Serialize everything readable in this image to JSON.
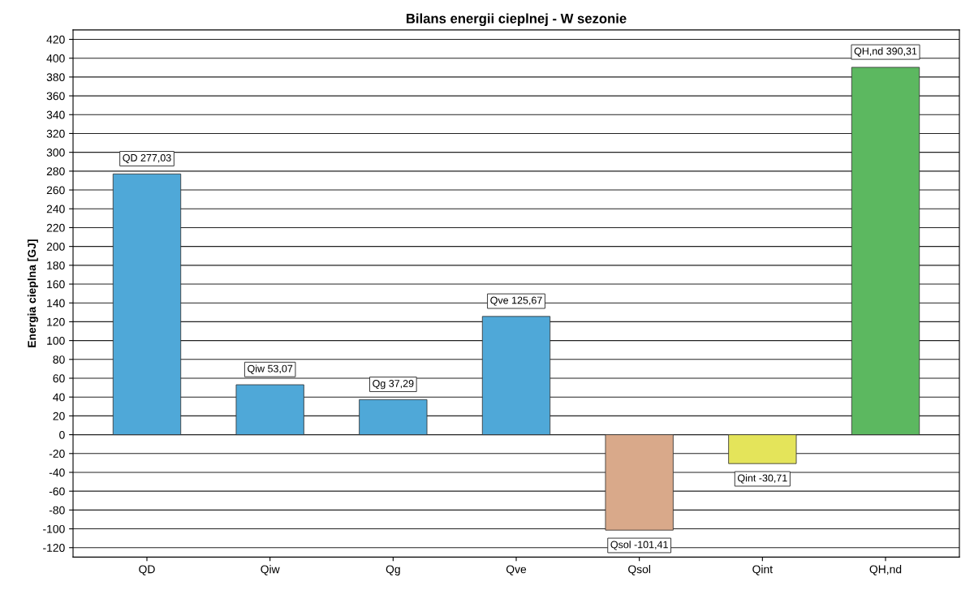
{
  "chart_data": {
    "type": "bar",
    "title": "Bilans energii cieplnej - W sezonie",
    "ylabel": "Energia cieplna [GJ]",
    "categories": [
      "QD",
      "Qiw",
      "Qg",
      "Qve",
      "Qsol",
      "Qint",
      "QH,nd"
    ],
    "values": [
      277.03,
      53.07,
      37.29,
      125.67,
      -101.41,
      -30.71,
      390.31
    ],
    "colors": [
      "#4fa8d8",
      "#4fa8d8",
      "#4fa8d8",
      "#4fa8d8",
      "#d9a98a",
      "#e4e45a",
      "#5cb860"
    ],
    "value_labels": [
      "QD 277,03",
      "Qiw 53,07",
      "Qg 37,29",
      "Qve 125,67",
      "Qsol -101,41",
      "Qint -30,71",
      "QH,nd 390,31"
    ],
    "ylim": [
      -130,
      430
    ],
    "yticks": [
      -120,
      -100,
      -80,
      -60,
      -40,
      -20,
      0,
      20,
      40,
      60,
      80,
      100,
      120,
      140,
      160,
      180,
      200,
      220,
      240,
      260,
      280,
      300,
      320,
      340,
      360,
      380,
      400,
      420
    ],
    "grid": "y",
    "legend": false
  }
}
